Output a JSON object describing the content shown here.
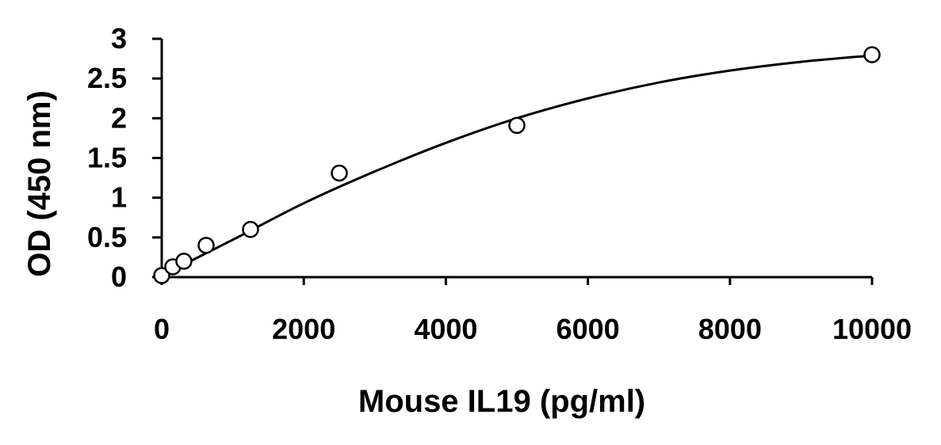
{
  "chart_data": {
    "type": "scatter",
    "title": "",
    "xlabel": "Mouse IL19 (pg/ml)",
    "ylabel": "OD (450 nm)",
    "xlim": [
      0,
      10000
    ],
    "ylim": [
      0,
      3
    ],
    "x_ticks": [
      0,
      2000,
      4000,
      6000,
      8000,
      10000
    ],
    "y_ticks": [
      0,
      0.5,
      1,
      1.5,
      2,
      2.5,
      3
    ],
    "x_tick_labels": [
      "0",
      "2000",
      "4000",
      "6000",
      "8000",
      "10000"
    ],
    "y_tick_labels": [
      "0",
      "0.5",
      "1",
      "1.5",
      "2",
      "2.5",
      "3"
    ],
    "grid": false,
    "legend": "none",
    "series": [
      {
        "marker": "open-circle",
        "x": [
          0,
          156,
          312,
          625,
          1250,
          2500,
          5000,
          10000
        ],
        "y": [
          0.02,
          0.13,
          0.2,
          0.4,
          0.6,
          1.31,
          1.91,
          2.8
        ]
      }
    ],
    "fit": {
      "type": "smooth-curve",
      "x": [
        0,
        1000,
        2000,
        3000,
        4000,
        5000,
        6000,
        7000,
        8000,
        9000,
        10000
      ],
      "y": [
        0.02,
        0.47,
        0.93,
        1.33,
        1.69,
        2.0,
        2.25,
        2.45,
        2.6,
        2.71,
        2.79
      ]
    }
  }
}
